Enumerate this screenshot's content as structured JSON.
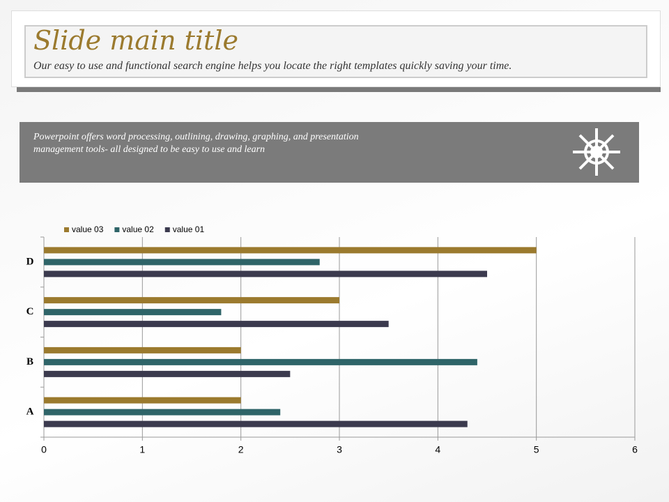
{
  "header": {
    "title": "Slide main title",
    "subtitle": "Our easy to use and functional search engine helps you locate the right templates quickly  saving your time."
  },
  "banner": {
    "text": "Powerpoint offers word processing, outlining, drawing, graphing, and presentation management tools- all designed to be easy to use and learn"
  },
  "chart_data": {
    "type": "bar",
    "orientation": "horizontal",
    "categories": [
      "A",
      "B",
      "C",
      "D"
    ],
    "series": [
      {
        "name": "value 03",
        "color": "#9b7a2e",
        "values": [
          2,
          2,
          3,
          5
        ]
      },
      {
        "name": "value 02",
        "color": "#2e6468",
        "values": [
          2.4,
          4.4,
          1.8,
          2.8
        ]
      },
      {
        "name": "value 01",
        "color": "#3b3a4e",
        "values": [
          4.3,
          2.5,
          3.5,
          4.5
        ]
      }
    ],
    "xlim": [
      0,
      6
    ],
    "xticks": [
      0,
      1,
      2,
      3,
      4,
      5,
      6
    ],
    "grid": true,
    "legend": "top"
  }
}
